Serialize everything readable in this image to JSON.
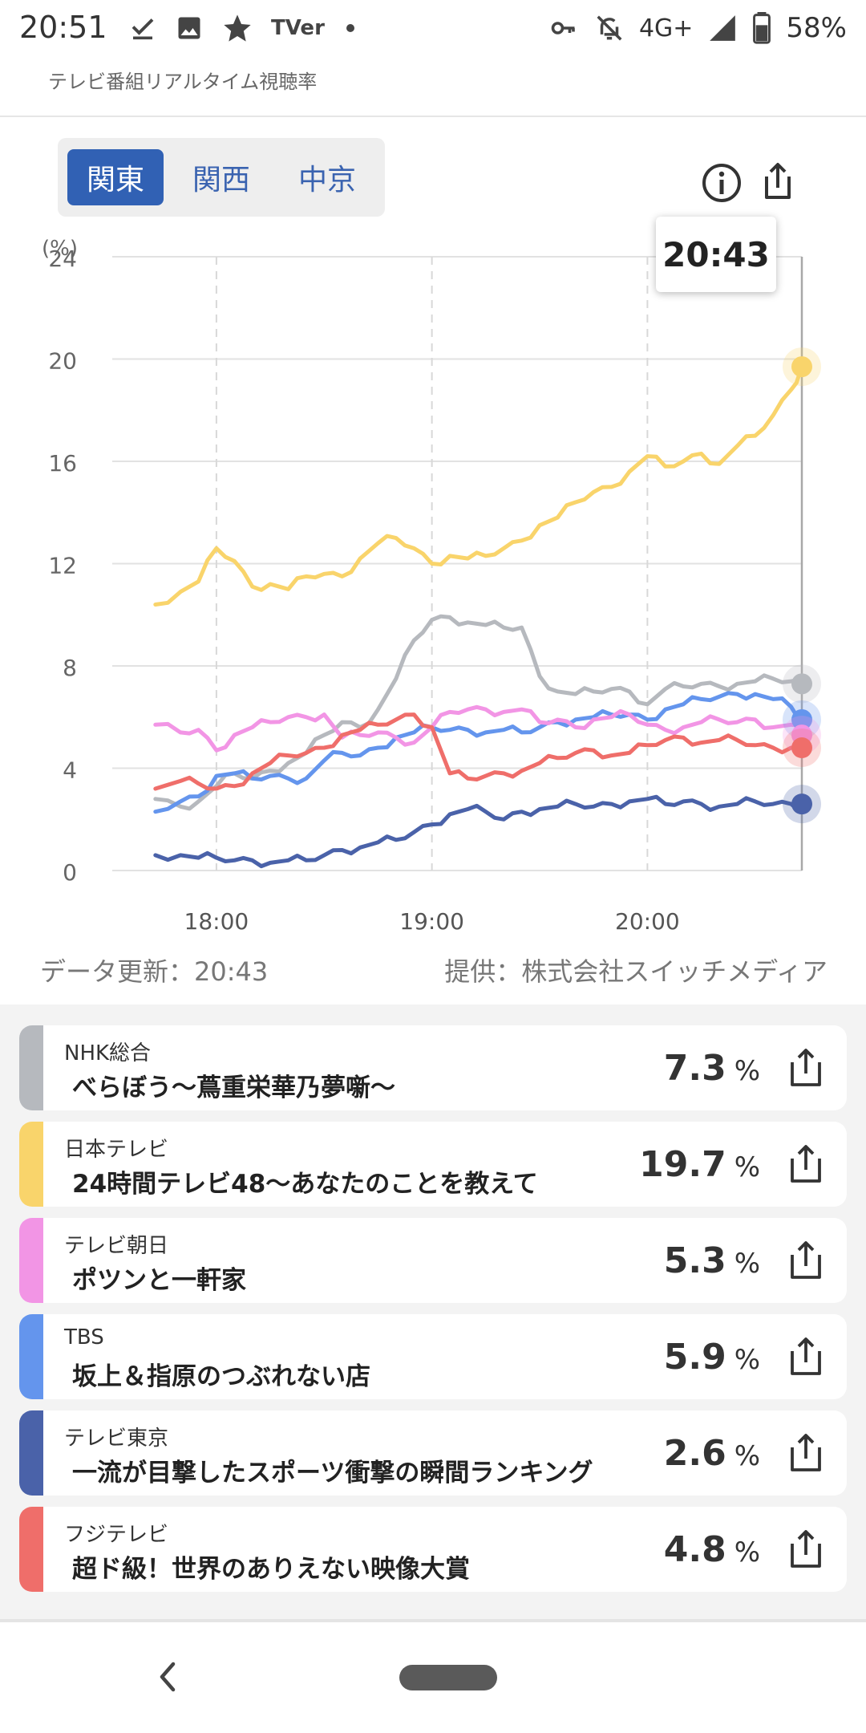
{
  "status_bar": {
    "time": "20:51",
    "network": "4G+",
    "battery": "58%",
    "icons": [
      "download-done-icon",
      "image-icon",
      "star-icon",
      "tver-icon",
      "dot-icon",
      "key-icon",
      "bell-off-icon",
      "signal-icon",
      "battery-icon"
    ],
    "tver_label": "TVer"
  },
  "header": {
    "subtitle": "テレビ番組リアルタイム視聴率"
  },
  "regions": {
    "tabs": [
      "関東",
      "関西",
      "中京"
    ],
    "selected": "関東"
  },
  "chart": {
    "tooltip_time": "20:43",
    "update_label": "データ更新：20:43",
    "provider_label": "提供：株式会社スイッチメディア"
  },
  "chart_data": {
    "type": "line",
    "title": "",
    "xlabel": "",
    "ylabel": "(%)",
    "ylim": [
      0,
      24
    ],
    "yticks": [
      "0",
      "4",
      "8",
      "12",
      "16",
      "20",
      "24"
    ],
    "xticks": [
      "18:00",
      "19:00",
      "20:00"
    ],
    "grid": true,
    "series": [
      {
        "name": "日本テレビ",
        "color": "#f9d46b",
        "x": [
          "17:43",
          "17:50",
          "17:55",
          "18:00",
          "18:05",
          "18:10",
          "18:15",
          "18:20",
          "18:25",
          "18:30",
          "18:35",
          "18:40",
          "18:45",
          "18:50",
          "18:55",
          "19:00",
          "19:05",
          "19:10",
          "19:15",
          "19:20",
          "19:25",
          "19:30",
          "19:35",
          "19:40",
          "19:45",
          "19:50",
          "19:55",
          "20:00",
          "20:05",
          "20:10",
          "20:15",
          "20:20",
          "20:25",
          "20:30",
          "20:35",
          "20:40",
          "20:43"
        ],
        "values": [
          10.4,
          10.9,
          11.3,
          12.6,
          12.1,
          11.1,
          11.2,
          11.0,
          11.5,
          11.6,
          11.5,
          12.2,
          12.8,
          13.0,
          12.6,
          12.0,
          12.3,
          12.2,
          12.3,
          12.6,
          12.9,
          13.5,
          13.8,
          14.4,
          14.8,
          15.0,
          15.6,
          16.2,
          15.8,
          16.0,
          16.3,
          15.9,
          16.6,
          17.0,
          17.8,
          18.8,
          19.7
        ]
      },
      {
        "name": "NHK総合",
        "color": "#b6b9be",
        "x": [
          "17:43",
          "17:50",
          "17:55",
          "18:00",
          "18:05",
          "18:10",
          "18:15",
          "18:20",
          "18:25",
          "18:30",
          "18:35",
          "18:40",
          "18:45",
          "18:50",
          "18:55",
          "19:00",
          "19:05",
          "19:10",
          "19:15",
          "19:20",
          "19:25",
          "19:30",
          "19:35",
          "19:40",
          "19:45",
          "19:50",
          "19:55",
          "20:00",
          "20:05",
          "20:10",
          "20:15",
          "20:20",
          "20:25",
          "20:30",
          "20:35",
          "20:40",
          "20:43"
        ],
        "values": [
          2.8,
          2.5,
          2.7,
          3.3,
          3.8,
          3.6,
          3.9,
          4.2,
          4.6,
          5.3,
          5.8,
          5.6,
          6.3,
          7.5,
          9.0,
          9.8,
          9.9,
          9.7,
          9.6,
          9.5,
          9.5,
          7.6,
          7.0,
          6.9,
          7.0,
          7.1,
          7.0,
          6.5,
          7.1,
          7.2,
          7.3,
          7.2,
          7.3,
          7.4,
          7.5,
          7.4,
          7.3
        ]
      },
      {
        "name": "TBS",
        "color": "#6495ed",
        "x": [
          "17:43",
          "17:50",
          "17:55",
          "18:00",
          "18:05",
          "18:10",
          "18:15",
          "18:20",
          "18:25",
          "18:30",
          "18:35",
          "18:40",
          "18:45",
          "18:50",
          "18:55",
          "19:00",
          "19:05",
          "19:10",
          "19:15",
          "19:20",
          "19:25",
          "19:30",
          "19:35",
          "19:40",
          "19:45",
          "19:50",
          "19:55",
          "20:00",
          "20:05",
          "20:10",
          "20:15",
          "20:20",
          "20:25",
          "20:30",
          "20:35",
          "20:40",
          "20:43"
        ],
        "values": [
          2.3,
          2.7,
          2.9,
          3.7,
          3.8,
          3.6,
          3.7,
          3.6,
          3.6,
          4.3,
          4.6,
          4.5,
          4.8,
          5.2,
          5.4,
          5.6,
          5.5,
          5.5,
          5.4,
          5.5,
          5.4,
          5.6,
          5.8,
          5.9,
          6.0,
          6.1,
          6.1,
          5.9,
          6.3,
          6.5,
          6.7,
          6.8,
          6.9,
          6.9,
          6.7,
          6.4,
          5.9
        ]
      },
      {
        "name": "テレビ朝日",
        "color": "#f295e5",
        "x": [
          "17:43",
          "17:50",
          "17:55",
          "18:00",
          "18:05",
          "18:10",
          "18:15",
          "18:20",
          "18:25",
          "18:30",
          "18:35",
          "18:40",
          "18:45",
          "18:50",
          "18:55",
          "19:00",
          "19:05",
          "19:10",
          "19:15",
          "19:20",
          "19:25",
          "19:30",
          "19:35",
          "19:40",
          "19:45",
          "19:50",
          "19:55",
          "20:00",
          "20:05",
          "20:10",
          "20:15",
          "20:20",
          "20:25",
          "20:30",
          "20:35",
          "20:40",
          "20:43"
        ],
        "values": [
          5.7,
          5.4,
          5.5,
          4.7,
          5.3,
          5.6,
          5.8,
          6.0,
          6.0,
          6.1,
          5.2,
          5.3,
          5.4,
          5.2,
          5.0,
          5.6,
          6.2,
          6.3,
          6.3,
          6.2,
          6.3,
          5.8,
          5.9,
          5.6,
          5.9,
          6.0,
          6.1,
          5.7,
          5.5,
          5.6,
          5.8,
          5.9,
          5.8,
          5.9,
          5.6,
          5.7,
          5.3
        ]
      },
      {
        "name": "フジテレビ",
        "color": "#ef6e6a",
        "x": [
          "17:43",
          "17:50",
          "17:55",
          "18:00",
          "18:05",
          "18:10",
          "18:15",
          "18:20",
          "18:25",
          "18:30",
          "18:35",
          "18:40",
          "18:45",
          "18:50",
          "18:55",
          "19:00",
          "19:05",
          "19:10",
          "19:15",
          "19:20",
          "19:25",
          "19:30",
          "19:35",
          "19:40",
          "19:45",
          "19:50",
          "19:55",
          "20:00",
          "20:05",
          "20:10",
          "20:15",
          "20:20",
          "20:25",
          "20:30",
          "20:35",
          "20:40",
          "20:43"
        ],
        "values": [
          3.2,
          3.5,
          3.4,
          3.2,
          3.3,
          3.8,
          4.2,
          4.5,
          4.6,
          4.8,
          5.3,
          5.5,
          5.7,
          5.9,
          6.1,
          5.6,
          3.8,
          3.6,
          3.7,
          3.8,
          3.9,
          4.2,
          4.4,
          4.6,
          4.7,
          4.5,
          4.6,
          4.9,
          5.1,
          5.2,
          5.0,
          5.1,
          5.1,
          4.9,
          4.8,
          4.8,
          4.8
        ]
      },
      {
        "name": "テレビ東京",
        "color": "#4a62a9",
        "x": [
          "17:43",
          "17:50",
          "17:55",
          "18:00",
          "18:05",
          "18:10",
          "18:15",
          "18:20",
          "18:25",
          "18:30",
          "18:35",
          "18:40",
          "18:45",
          "18:50",
          "18:55",
          "19:00",
          "19:05",
          "19:10",
          "19:15",
          "19:20",
          "19:25",
          "19:30",
          "19:35",
          "19:40",
          "19:45",
          "19:50",
          "19:55",
          "20:00",
          "20:05",
          "20:10",
          "20:15",
          "20:20",
          "20:25",
          "20:30",
          "20:35",
          "20:40",
          "20:43"
        ],
        "values": [
          0.6,
          0.6,
          0.5,
          0.5,
          0.4,
          0.4,
          0.3,
          0.4,
          0.4,
          0.6,
          0.8,
          0.9,
          1.1,
          1.2,
          1.5,
          1.8,
          2.2,
          2.4,
          2.3,
          2.0,
          2.3,
          2.4,
          2.5,
          2.6,
          2.5,
          2.6,
          2.7,
          2.8,
          2.6,
          2.7,
          2.6,
          2.5,
          2.6,
          2.7,
          2.6,
          2.6,
          2.6
        ]
      }
    ]
  },
  "ratings": [
    {
      "channel": "NHK総合",
      "program": "べらぼう～蔦重栄華乃夢噺～",
      "rating": "7.3",
      "unit": "%",
      "color": "#b6b9be"
    },
    {
      "channel": "日本テレビ",
      "program": "24時間テレビ48～あなたのことを教えて",
      "rating": "19.7",
      "unit": "%",
      "color": "#f9d46b"
    },
    {
      "channel": "テレビ朝日",
      "program": "ポツンと一軒家",
      "rating": "5.3",
      "unit": "%",
      "color": "#f295e5"
    },
    {
      "channel": "TBS",
      "program": "坂上＆指原のつぶれない店",
      "rating": "5.9",
      "unit": "%",
      "color": "#6495ed"
    },
    {
      "channel": "テレビ東京",
      "program": "一流が目撃したスポーツ衝撃の瞬間ランキング",
      "rating": "2.6",
      "unit": "%",
      "color": "#4a62a9"
    },
    {
      "channel": "フジテレビ",
      "program": "超ド級！世界のありえない映像大賞",
      "rating": "4.8",
      "unit": "%",
      "color": "#ef6e6a"
    }
  ]
}
